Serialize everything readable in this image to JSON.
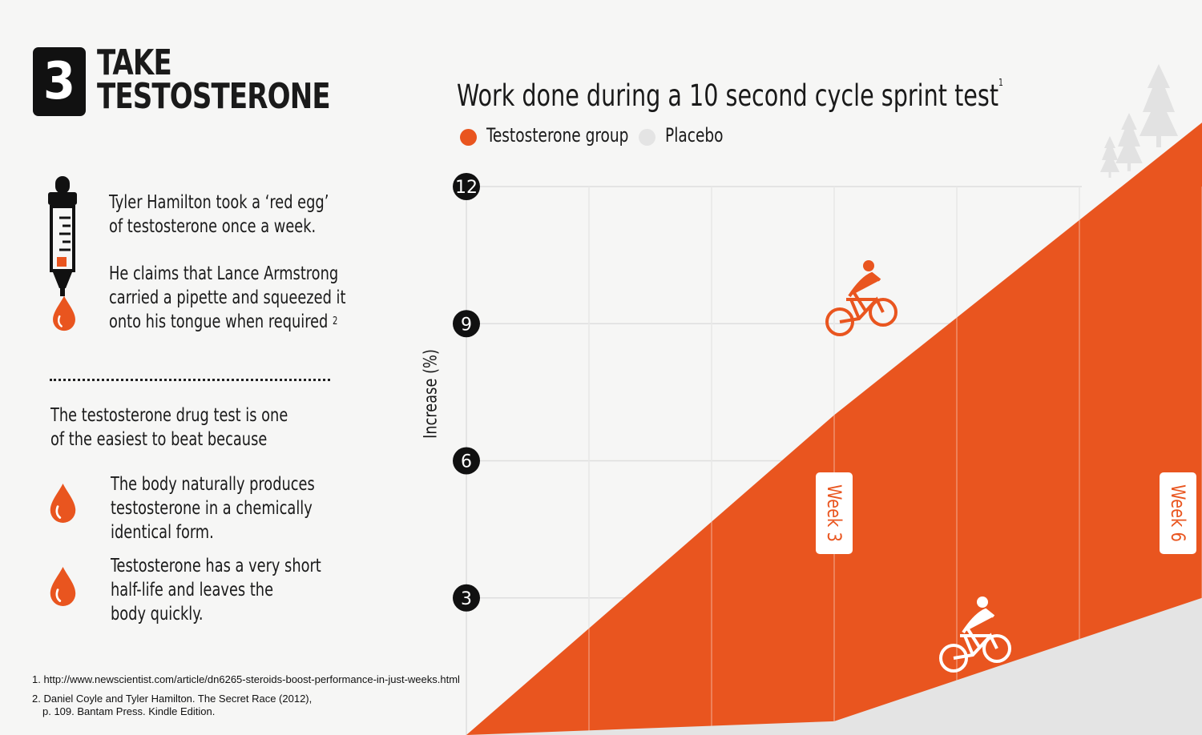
{
  "header": {
    "number": "3",
    "title_line1": "TAKE",
    "title_line2": "TESTOSTERONE"
  },
  "text": {
    "para1_line1": "Tyler Hamilton took a ‘red egg’",
    "para1_line2": "of testosterone once a week.",
    "para2_line1": "He claims that Lance Armstrong",
    "para2_line2": "carried a pipette and squeezed it",
    "para2_line3": "onto his tongue when required",
    "para2_sup": "2",
    "para3_line1": "The testosterone drug test is one",
    "para3_line2": "of the easiest to beat because",
    "bullet1_line1": "The body naturally produces",
    "bullet1_line2": "testosterone in a chemically",
    "bullet1_line3": "identical form.",
    "bullet2_line1": "Testosterone has a very short",
    "bullet2_line2": "half-life and leaves the",
    "bullet2_line3": "body quickly."
  },
  "footnotes": {
    "note1": "1. http://www.newscientist.com/article/dn6265-steroids-boost-performance-in-just-weeks.html",
    "note2_line1": "2. Daniel Coyle and Tyler Hamilton. The Secret Race (2012),",
    "note2_line2": "p. 109. Bantam Press. Kindle Edition."
  },
  "colors": {
    "accent": "#e9551f",
    "placebo": "#e4e4e4",
    "dark": "#111111",
    "grid": "#dcdcdc"
  },
  "icons": [
    "pipette-icon",
    "drop-icon",
    "cyclist-icon",
    "tree-icon"
  ],
  "chart_data": {
    "type": "area",
    "title": "Work done during a 10 second cycle sprint test",
    "title_sup": "1",
    "ylabel": "Increase (%)",
    "ylim": [
      0,
      12
    ],
    "yticks": [
      "12",
      "9",
      "6",
      "3"
    ],
    "ytick_values": [
      12,
      9,
      6,
      3
    ],
    "xlim": [
      0,
      6
    ],
    "legend": {
      "placement": "top-left",
      "entries": [
        "Testosterone group",
        "Placebo"
      ]
    },
    "annotations": [
      {
        "label": "Week 3",
        "x": 3
      },
      {
        "label": "Week 6",
        "x": 6
      }
    ],
    "series": [
      {
        "name": "Testosterone group",
        "x": [
          0,
          3,
          6
        ],
        "values": [
          0,
          7.0,
          13.4
        ]
      },
      {
        "name": "Placebo",
        "x": [
          0,
          3,
          6
        ],
        "values": [
          0,
          0.3,
          3.0
        ]
      }
    ]
  }
}
